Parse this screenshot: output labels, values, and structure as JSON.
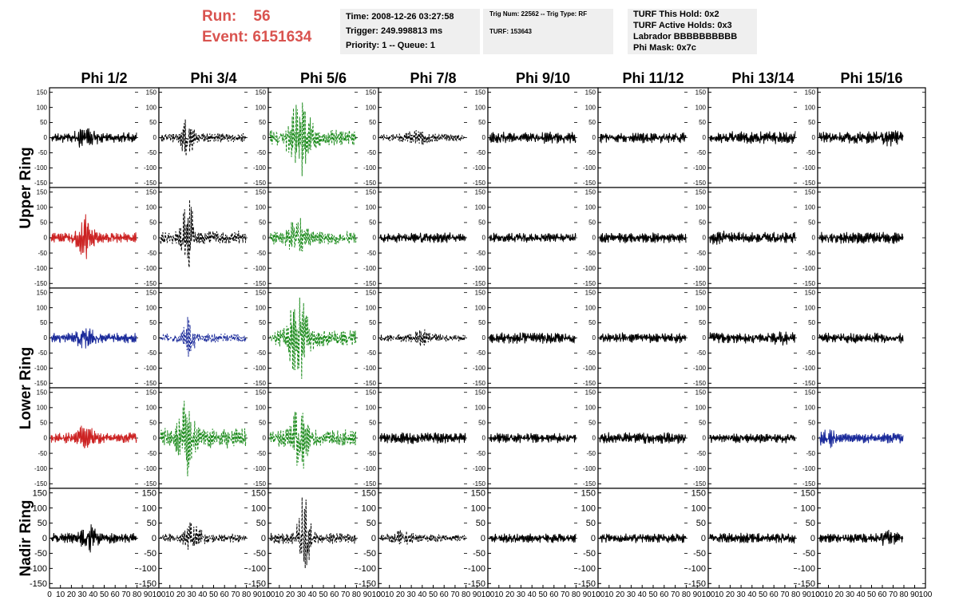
{
  "header": {
    "run_label": "Run:",
    "run_value": "56",
    "event_label": "Event:",
    "event_value": "6151634",
    "accent_color": "#d9534f"
  },
  "box_time": {
    "lines": [
      "Time: 2008-12-26 03:27:58",
      "Trigger: 249.998813 ms",
      "Priority: 1 -- Queue: 1"
    ]
  },
  "box_trig": {
    "lines": [
      "Trig Num: 22562 -- Trig Type: RF",
      "",
      "TURF: 153643"
    ]
  },
  "box_turf": {
    "lines": [
      "TURF This Hold: 0x2",
      "TURF Active Holds: 0x3",
      "Labrador BBBBBBBBBB",
      "Phi Mask: 0x7c"
    ]
  },
  "chart_data": {
    "type": "line",
    "columns": [
      "Phi 1/2",
      "Phi 3/4",
      "Phi 5/6",
      "Phi 7/8",
      "Phi 9/10",
      "Phi 11/12",
      "Phi 13/14",
      "Phi 15/16"
    ],
    "row_groups": [
      {
        "label": "Upper Ring",
        "rows": [
          0,
          1
        ]
      },
      {
        "label": "Lower Ring",
        "rows": [
          2,
          3
        ]
      },
      {
        "label": "Nadir Ring",
        "rows": [
          4
        ]
      }
    ],
    "y_ticks": [
      -150,
      -100,
      -50,
      0,
      50,
      100,
      150
    ],
    "ylim": [
      -165,
      165
    ],
    "x_ticks": [
      0,
      10,
      20,
      30,
      40,
      50,
      60,
      70,
      80,
      90,
      100
    ],
    "xlim": [
      0,
      100
    ],
    "color_legend": {
      "black": "#000000",
      "red": "#cc2222",
      "blue": "#1a2a9a",
      "green": "#1a8a1a"
    },
    "panels": [
      [
        {
          "color": "black",
          "amp": 14,
          "peak": 38,
          "peak_center": 40,
          "peak_width": 10,
          "seed": 11,
          "dashed": false
        },
        {
          "color": "black",
          "amp": 12,
          "peak": 72,
          "peak_center": 32,
          "peak_width": 7,
          "seed": 12,
          "dashed": true
        },
        {
          "color": "green",
          "amp": 22,
          "peak": 115,
          "peak_center": 35,
          "peak_width": 12,
          "seed": 13,
          "dashed": true
        },
        {
          "color": "black",
          "amp": 10,
          "peak": 22,
          "peak_center": 45,
          "peak_width": 14,
          "seed": 14,
          "dashed": true
        },
        {
          "color": "black",
          "amp": 16,
          "peak": 16,
          "peak_center": 50,
          "peak_width": 40,
          "seed": 15,
          "dashed": false
        },
        {
          "color": "black",
          "amp": 15,
          "peak": 15,
          "peak_center": 50,
          "peak_width": 40,
          "seed": 16,
          "dashed": false
        },
        {
          "color": "black",
          "amp": 17,
          "peak": 17,
          "peak_center": 50,
          "peak_width": 40,
          "seed": 17,
          "dashed": false
        },
        {
          "color": "black",
          "amp": 16,
          "peak": 24,
          "peak_center": 80,
          "peak_width": 15,
          "seed": 18,
          "dashed": false
        }
      ],
      [
        {
          "color": "red",
          "amp": 14,
          "peak": 62,
          "peak_center": 40,
          "peak_width": 9,
          "seed": 21,
          "dashed": false
        },
        {
          "color": "black",
          "amp": 18,
          "peak": 135,
          "peak_center": 32,
          "peak_width": 6,
          "seed": 22,
          "dashed": true
        },
        {
          "color": "green",
          "amp": 18,
          "peak": 70,
          "peak_center": 32,
          "peak_width": 9,
          "seed": 23,
          "dashed": true
        },
        {
          "color": "black",
          "amp": 13,
          "peak": 14,
          "peak_center": 50,
          "peak_width": 40,
          "seed": 24,
          "dashed": false
        },
        {
          "color": "black",
          "amp": 13,
          "peak": 13,
          "peak_center": 50,
          "peak_width": 40,
          "seed": 25,
          "dashed": false
        },
        {
          "color": "black",
          "amp": 14,
          "peak": 14,
          "peak_center": 50,
          "peak_width": 40,
          "seed": 26,
          "dashed": false
        },
        {
          "color": "black",
          "amp": 15,
          "peak": 22,
          "peak_center": 15,
          "peak_width": 12,
          "seed": 27,
          "dashed": false
        },
        {
          "color": "black",
          "amp": 15,
          "peak": 16,
          "peak_center": 50,
          "peak_width": 40,
          "seed": 28,
          "dashed": false
        }
      ],
      [
        {
          "color": "blue",
          "amp": 14,
          "peak": 32,
          "peak_center": 40,
          "peak_width": 10,
          "seed": 31,
          "dashed": false
        },
        {
          "color": "blue",
          "amp": 12,
          "peak": 72,
          "peak_center": 33,
          "peak_width": 6,
          "seed": 32,
          "dashed": true
        },
        {
          "color": "green",
          "amp": 22,
          "peak": 115,
          "peak_center": 33,
          "peak_width": 12,
          "seed": 33,
          "dashed": true
        },
        {
          "color": "black",
          "amp": 10,
          "peak": 24,
          "peak_center": 50,
          "peak_width": 12,
          "seed": 34,
          "dashed": true
        },
        {
          "color": "black",
          "amp": 14,
          "peak": 16,
          "peak_center": 50,
          "peak_width": 40,
          "seed": 35,
          "dashed": false
        },
        {
          "color": "black",
          "amp": 14,
          "peak": 14,
          "peak_center": 50,
          "peak_width": 40,
          "seed": 36,
          "dashed": false
        },
        {
          "color": "black",
          "amp": 15,
          "peak": 24,
          "peak_center": 85,
          "peak_width": 10,
          "seed": 37,
          "dashed": false
        },
        {
          "color": "black",
          "amp": 14,
          "peak": 14,
          "peak_center": 50,
          "peak_width": 40,
          "seed": 38,
          "dashed": false
        }
      ],
      [
        {
          "color": "red",
          "amp": 15,
          "peak": 42,
          "peak_center": 40,
          "peak_width": 11,
          "seed": 41,
          "dashed": false
        },
        {
          "color": "green",
          "amp": 28,
          "peak": 115,
          "peak_center": 30,
          "peak_width": 9,
          "seed": 42,
          "dashed": true
        },
        {
          "color": "green",
          "amp": 22,
          "peak": 100,
          "peak_center": 35,
          "peak_width": 10,
          "seed": 43,
          "dashed": true
        },
        {
          "color": "black",
          "amp": 15,
          "peak": 15,
          "peak_center": 50,
          "peak_width": 40,
          "seed": 44,
          "dashed": false
        },
        {
          "color": "black",
          "amp": 13,
          "peak": 13,
          "peak_center": 50,
          "peak_width": 40,
          "seed": 45,
          "dashed": false
        },
        {
          "color": "black",
          "amp": 15,
          "peak": 15,
          "peak_center": 50,
          "peak_width": 40,
          "seed": 46,
          "dashed": false
        },
        {
          "color": "black",
          "amp": 13,
          "peak": 13,
          "peak_center": 50,
          "peak_width": 40,
          "seed": 47,
          "dashed": false
        },
        {
          "color": "blue",
          "amp": 15,
          "peak": 28,
          "peak_center": 10,
          "peak_width": 12,
          "seed": 48,
          "dashed": false
        }
      ],
      [
        {
          "color": "black",
          "amp": 14,
          "peak": 40,
          "peak_center": 45,
          "peak_width": 10,
          "seed": 51,
          "dashed": false
        },
        {
          "color": "black",
          "amp": 12,
          "peak": 52,
          "peak_center": 38,
          "peak_width": 9,
          "seed": 52,
          "dashed": true
        },
        {
          "color": "black",
          "amp": 15,
          "peak": 120,
          "peak_center": 40,
          "peak_width": 7,
          "seed": 53,
          "dashed": true
        },
        {
          "color": "black",
          "amp": 10,
          "peak": 22,
          "peak_center": 25,
          "peak_width": 14,
          "seed": 54,
          "dashed": true
        },
        {
          "color": "black",
          "amp": 12,
          "peak": 12,
          "peak_center": 50,
          "peak_width": 40,
          "seed": 55,
          "dashed": false
        },
        {
          "color": "black",
          "amp": 13,
          "peak": 13,
          "peak_center": 50,
          "peak_width": 40,
          "seed": 56,
          "dashed": false
        },
        {
          "color": "black",
          "amp": 14,
          "peak": 14,
          "peak_center": 50,
          "peak_width": 40,
          "seed": 57,
          "dashed": false
        },
        {
          "color": "black",
          "amp": 12,
          "peak": 22,
          "peak_center": 80,
          "peak_width": 12,
          "seed": 58,
          "dashed": false
        }
      ]
    ]
  }
}
